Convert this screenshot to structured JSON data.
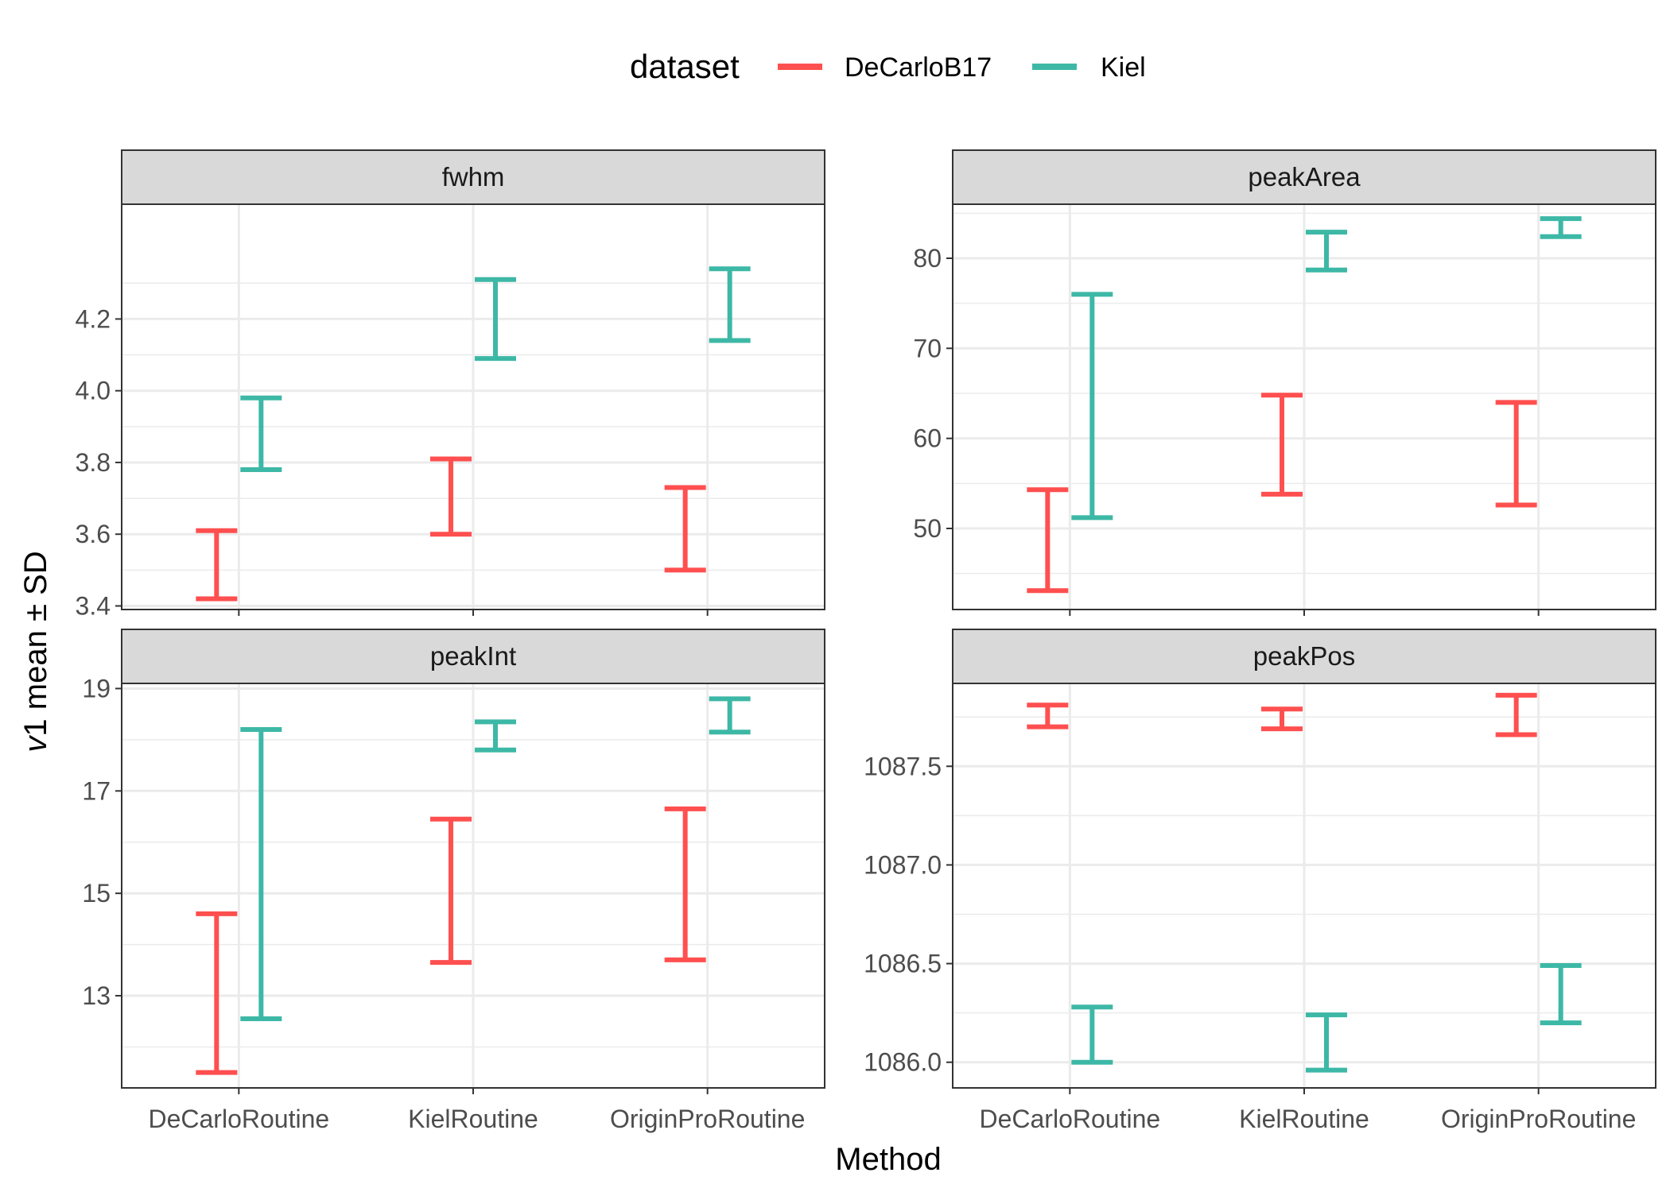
{
  "legend": {
    "title": "dataset",
    "placement": "top",
    "entries": [
      {
        "name": "DeCarloB17",
        "color": "#F8766D"
      },
      {
        "name": "Kiel",
        "color": "#00BFC4"
      }
    ]
  },
  "axes": {
    "xlabel": "Method",
    "ylabel_italic": "v",
    "ylabel_rest": "1 mean ± SD"
  },
  "chart_data": {
    "type": "errorbar",
    "facet_layout": "2x2",
    "categories": [
      "DeCarloRoutine",
      "KielRoutine",
      "OriginProRoutine"
    ],
    "colors": {
      "DeCarloB17": "#FF4F4F",
      "Kiel": "#3DB8A6"
    },
    "grid": true,
    "panels": [
      {
        "title": "fwhm",
        "ylim": [
          3.39,
          4.52
        ],
        "yticks": [
          3.4,
          3.6,
          3.8,
          4.0,
          4.2
        ],
        "tick_labels": [
          "3.4",
          "3.6",
          "3.8",
          "4.0",
          "4.2"
        ],
        "series": [
          {
            "name": "DeCarloB17",
            "lower": [
              3.42,
              3.6,
              3.5
            ],
            "upper": [
              3.61,
              3.81,
              3.73
            ]
          },
          {
            "name": "Kiel",
            "lower": [
              3.78,
              4.09,
              4.14
            ],
            "upper": [
              3.98,
              4.31,
              4.34
            ]
          }
        ]
      },
      {
        "title": "peakArea",
        "ylim": [
          41.0,
          86.0
        ],
        "yticks": [
          50,
          60,
          70,
          80
        ],
        "tick_labels": [
          "50",
          "60",
          "70",
          "80"
        ],
        "series": [
          {
            "name": "DeCarloB17",
            "lower": [
              43.1,
              53.8,
              52.6
            ],
            "upper": [
              54.3,
              64.8,
              64.0
            ]
          },
          {
            "name": "Kiel",
            "lower": [
              51.2,
              78.7,
              82.4
            ],
            "upper": [
              76.0,
              82.9,
              84.4
            ]
          }
        ]
      },
      {
        "title": "peakInt",
        "ylim": [
          11.2,
          19.1
        ],
        "yticks": [
          13,
          15,
          17,
          19
        ],
        "tick_labels": [
          "13",
          "15",
          "17",
          "19"
        ],
        "series": [
          {
            "name": "DeCarloB17",
            "lower": [
              11.5,
              13.65,
              13.7
            ],
            "upper": [
              14.6,
              16.45,
              16.65
            ]
          },
          {
            "name": "Kiel",
            "lower": [
              12.55,
              17.8,
              18.15
            ],
            "upper": [
              18.2,
              18.35,
              18.8
            ]
          }
        ]
      },
      {
        "title": "peakPos",
        "ylim": [
          1085.87,
          1087.92
        ],
        "yticks": [
          1086.0,
          1086.5,
          1087.0,
          1087.5
        ],
        "tick_labels": [
          "1086.0",
          "1086.5",
          "1087.0",
          "1087.5"
        ],
        "series": [
          {
            "name": "DeCarloB17",
            "lower": [
              1087.7,
              1087.69,
              1087.66
            ],
            "upper": [
              1087.81,
              1087.79,
              1087.86
            ]
          },
          {
            "name": "Kiel",
            "lower": [
              1086.0,
              1085.96,
              1086.2
            ],
            "upper": [
              1086.28,
              1086.24,
              1086.49
            ]
          }
        ]
      }
    ]
  }
}
